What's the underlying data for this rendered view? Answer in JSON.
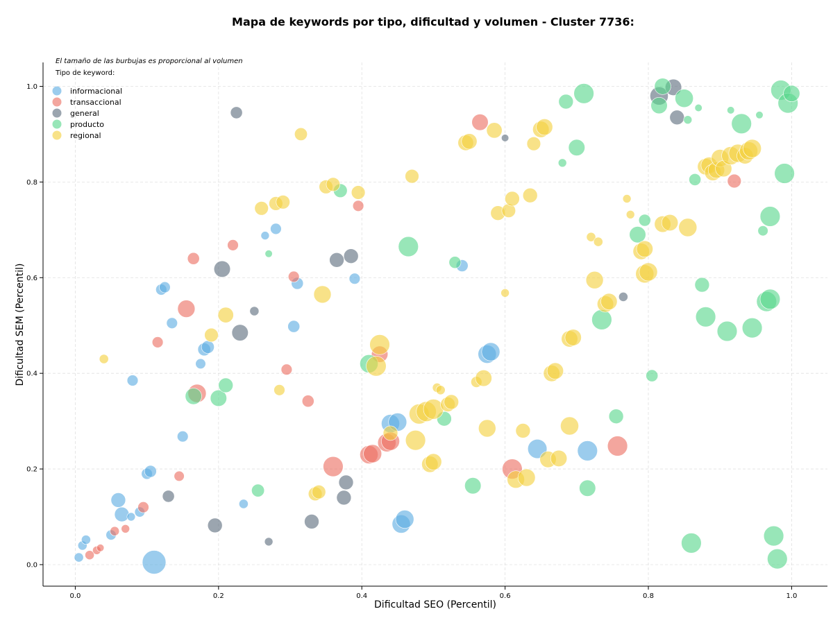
{
  "chart_data": {
    "type": "scatter",
    "title": "Mapa de keywords por tipo, dificultad y volumen - Cluster 7736:",
    "xlabel": "Dificultad SEO (Percentil)",
    "ylabel": "Dificultad SEM (Percentil)",
    "annotation": "El tamaño de las burbujas es proporcional al volumen",
    "legend_title": "Tipo de keyword:",
    "legend_position": "top-left",
    "xlim": [
      -0.045,
      1.05
    ],
    "ylim": [
      -0.045,
      1.05
    ],
    "xticks": [
      0.0,
      0.2,
      0.4,
      0.6,
      0.8,
      1.0
    ],
    "yticks": [
      0.0,
      0.2,
      0.4,
      0.6,
      0.8,
      1.0
    ],
    "tick_labels": [
      "0.0",
      "0.2",
      "0.4",
      "0.6",
      "0.8",
      "1.0"
    ],
    "grid": true,
    "series": [
      {
        "name": "informacional",
        "color": "#5DADE2",
        "points": [
          [
            0.005,
            0.015,
            0.2
          ],
          [
            0.01,
            0.04,
            0.2
          ],
          [
            0.015,
            0.052,
            0.2
          ],
          [
            0.05,
            0.062,
            0.25
          ],
          [
            0.06,
            0.135,
            0.5
          ],
          [
            0.065,
            0.105,
            0.5
          ],
          [
            0.078,
            0.1,
            0.15
          ],
          [
            0.09,
            0.11,
            0.25
          ],
          [
            0.1,
            0.19,
            0.3
          ],
          [
            0.105,
            0.195,
            0.35
          ],
          [
            0.11,
            0.005,
            1.0
          ],
          [
            0.08,
            0.385,
            0.3
          ],
          [
            0.12,
            0.575,
            0.3
          ],
          [
            0.125,
            0.58,
            0.3
          ],
          [
            0.135,
            0.505,
            0.3
          ],
          [
            0.15,
            0.268,
            0.3
          ],
          [
            0.175,
            0.42,
            0.25
          ],
          [
            0.18,
            0.45,
            0.4
          ],
          [
            0.185,
            0.455,
            0.4
          ],
          [
            0.235,
            0.127,
            0.2
          ],
          [
            0.265,
            0.688,
            0.15
          ],
          [
            0.28,
            0.702,
            0.3
          ],
          [
            0.305,
            0.498,
            0.35
          ],
          [
            0.31,
            0.588,
            0.35
          ],
          [
            0.39,
            0.598,
            0.3
          ],
          [
            0.44,
            0.295,
            0.7
          ],
          [
            0.45,
            0.298,
            0.7
          ],
          [
            0.455,
            0.085,
            0.7
          ],
          [
            0.46,
            0.095,
            0.7
          ],
          [
            0.54,
            0.625,
            0.35
          ],
          [
            0.575,
            0.44,
            0.7
          ],
          [
            0.58,
            0.445,
            0.7
          ],
          [
            0.645,
            0.242,
            0.75
          ],
          [
            0.715,
            0.238,
            0.8
          ]
        ]
      },
      {
        "name": "transaccional",
        "color": "#EC7063",
        "points": [
          [
            0.02,
            0.02,
            0.2
          ],
          [
            0.03,
            0.03,
            0.15
          ],
          [
            0.035,
            0.035,
            0.1
          ],
          [
            0.055,
            0.07,
            0.2
          ],
          [
            0.07,
            0.075,
            0.15
          ],
          [
            0.095,
            0.12,
            0.3
          ],
          [
            0.115,
            0.465,
            0.3
          ],
          [
            0.145,
            0.185,
            0.25
          ],
          [
            0.155,
            0.535,
            0.65
          ],
          [
            0.165,
            0.64,
            0.35
          ],
          [
            0.17,
            0.358,
            0.7
          ],
          [
            0.22,
            0.668,
            0.3
          ],
          [
            0.295,
            0.408,
            0.3
          ],
          [
            0.305,
            0.602,
            0.3
          ],
          [
            0.325,
            0.342,
            0.35
          ],
          [
            0.36,
            0.205,
            0.8
          ],
          [
            0.395,
            0.75,
            0.3
          ],
          [
            0.41,
            0.23,
            0.7
          ],
          [
            0.415,
            0.232,
            0.7
          ],
          [
            0.425,
            0.44,
            0.6
          ],
          [
            0.435,
            0.255,
            0.7
          ],
          [
            0.44,
            0.258,
            0.7
          ],
          [
            0.565,
            0.925,
            0.6
          ],
          [
            0.61,
            0.2,
            0.8
          ],
          [
            0.757,
            0.248,
            0.8
          ],
          [
            0.92,
            0.802,
            0.45
          ]
        ]
      },
      {
        "name": "general",
        "color": "#5D6D7E",
        "points": [
          [
            0.13,
            0.143,
            0.35
          ],
          [
            0.195,
            0.082,
            0.5
          ],
          [
            0.205,
            0.618,
            0.6
          ],
          [
            0.225,
            0.945,
            0.35
          ],
          [
            0.23,
            0.485,
            0.6
          ],
          [
            0.25,
            0.53,
            0.2
          ],
          [
            0.27,
            0.048,
            0.15
          ],
          [
            0.33,
            0.09,
            0.5
          ],
          [
            0.365,
            0.637,
            0.5
          ],
          [
            0.375,
            0.14,
            0.5
          ],
          [
            0.378,
            0.172,
            0.5
          ],
          [
            0.385,
            0.645,
            0.5
          ],
          [
            0.6,
            0.892,
            0.1
          ],
          [
            0.765,
            0.56,
            0.2
          ],
          [
            0.815,
            0.98,
            0.7
          ],
          [
            0.835,
            0.998,
            0.6
          ],
          [
            0.84,
            0.935,
            0.5
          ]
        ]
      },
      {
        "name": "producto",
        "color": "#58D68D",
        "points": [
          [
            0.165,
            0.352,
            0.6
          ],
          [
            0.2,
            0.348,
            0.6
          ],
          [
            0.21,
            0.375,
            0.5
          ],
          [
            0.255,
            0.155,
            0.4
          ],
          [
            0.27,
            0.65,
            0.1
          ],
          [
            0.37,
            0.782,
            0.45
          ],
          [
            0.41,
            0.42,
            0.7
          ],
          [
            0.465,
            0.665,
            0.8
          ],
          [
            0.515,
            0.305,
            0.5
          ],
          [
            0.53,
            0.632,
            0.35
          ],
          [
            0.555,
            0.165,
            0.6
          ],
          [
            0.68,
            0.84,
            0.15
          ],
          [
            0.685,
            0.968,
            0.5
          ],
          [
            0.7,
            0.872,
            0.6
          ],
          [
            0.71,
            0.985,
            0.8
          ],
          [
            0.715,
            0.16,
            0.6
          ],
          [
            0.735,
            0.512,
            0.8
          ],
          [
            0.755,
            0.31,
            0.5
          ],
          [
            0.785,
            0.69,
            0.6
          ],
          [
            0.795,
            0.72,
            0.35
          ],
          [
            0.805,
            0.395,
            0.35
          ],
          [
            0.815,
            0.96,
            0.6
          ],
          [
            0.82,
            1.0,
            0.6
          ],
          [
            0.85,
            0.975,
            0.7
          ],
          [
            0.855,
            0.93,
            0.15
          ],
          [
            0.86,
            0.045,
            0.8
          ],
          [
            0.865,
            0.805,
            0.35
          ],
          [
            0.87,
            0.955,
            0.1
          ],
          [
            0.875,
            0.585,
            0.5
          ],
          [
            0.88,
            0.518,
            0.8
          ],
          [
            0.91,
            0.488,
            0.8
          ],
          [
            0.915,
            0.95,
            0.1
          ],
          [
            0.93,
            0.922,
            0.8
          ],
          [
            0.945,
            0.495,
            0.8
          ],
          [
            0.955,
            0.94,
            0.1
          ],
          [
            0.96,
            0.698,
            0.25
          ],
          [
            0.965,
            0.55,
            0.8
          ],
          [
            0.97,
            0.555,
            0.8
          ],
          [
            0.97,
            0.728,
            0.8
          ],
          [
            0.975,
            0.06,
            0.8
          ],
          [
            0.98,
            0.012,
            0.8
          ],
          [
            0.985,
            0.992,
            0.8
          ],
          [
            0.99,
            0.818,
            0.8
          ],
          [
            0.995,
            0.965,
            0.8
          ],
          [
            1.0,
            0.985,
            0.6
          ]
        ]
      },
      {
        "name": "regional",
        "color": "#F4D03F",
        "points": [
          [
            0.04,
            0.43,
            0.2
          ],
          [
            0.19,
            0.48,
            0.45
          ],
          [
            0.21,
            0.522,
            0.55
          ],
          [
            0.26,
            0.745,
            0.45
          ],
          [
            0.28,
            0.755,
            0.45
          ],
          [
            0.29,
            0.758,
            0.45
          ],
          [
            0.285,
            0.365,
            0.3
          ],
          [
            0.315,
            0.9,
            0.4
          ],
          [
            0.335,
            0.148,
            0.45
          ],
          [
            0.34,
            0.152,
            0.45
          ],
          [
            0.345,
            0.565,
            0.65
          ],
          [
            0.35,
            0.79,
            0.45
          ],
          [
            0.36,
            0.795,
            0.45
          ],
          [
            0.395,
            0.778,
            0.45
          ],
          [
            0.42,
            0.415,
            0.8
          ],
          [
            0.425,
            0.46,
            0.8
          ],
          [
            0.44,
            0.275,
            0.5
          ],
          [
            0.47,
            0.812,
            0.45
          ],
          [
            0.475,
            0.26,
            0.8
          ],
          [
            0.48,
            0.315,
            0.8
          ],
          [
            0.49,
            0.32,
            0.8
          ],
          [
            0.5,
            0.325,
            0.8
          ],
          [
            0.495,
            0.21,
            0.6
          ],
          [
            0.5,
            0.215,
            0.6
          ],
          [
            0.505,
            0.37,
            0.2
          ],
          [
            0.51,
            0.365,
            0.2
          ],
          [
            0.52,
            0.335,
            0.5
          ],
          [
            0.525,
            0.34,
            0.5
          ],
          [
            0.545,
            0.882,
            0.55
          ],
          [
            0.55,
            0.885,
            0.55
          ],
          [
            0.56,
            0.382,
            0.3
          ],
          [
            0.57,
            0.39,
            0.6
          ],
          [
            0.575,
            0.285,
            0.65
          ],
          [
            0.585,
            0.908,
            0.55
          ],
          [
            0.59,
            0.735,
            0.5
          ],
          [
            0.6,
            0.568,
            0.15
          ],
          [
            0.605,
            0.74,
            0.45
          ],
          [
            0.61,
            0.765,
            0.5
          ],
          [
            0.615,
            0.178,
            0.65
          ],
          [
            0.625,
            0.28,
            0.5
          ],
          [
            0.63,
            0.182,
            0.65
          ],
          [
            0.635,
            0.772,
            0.5
          ],
          [
            0.64,
            0.88,
            0.45
          ],
          [
            0.65,
            0.91,
            0.6
          ],
          [
            0.655,
            0.915,
            0.6
          ],
          [
            0.66,
            0.22,
            0.6
          ],
          [
            0.665,
            0.4,
            0.6
          ],
          [
            0.67,
            0.405,
            0.6
          ],
          [
            0.675,
            0.222,
            0.6
          ],
          [
            0.69,
            0.29,
            0.7
          ],
          [
            0.69,
            0.472,
            0.6
          ],
          [
            0.695,
            0.475,
            0.6
          ],
          [
            0.72,
            0.685,
            0.2
          ],
          [
            0.725,
            0.595,
            0.65
          ],
          [
            0.73,
            0.675,
            0.2
          ],
          [
            0.74,
            0.545,
            0.6
          ],
          [
            0.745,
            0.55,
            0.6
          ],
          [
            0.77,
            0.765,
            0.15
          ],
          [
            0.775,
            0.732,
            0.15
          ],
          [
            0.79,
            0.655,
            0.6
          ],
          [
            0.795,
            0.66,
            0.6
          ],
          [
            0.795,
            0.608,
            0.7
          ],
          [
            0.8,
            0.612,
            0.7
          ],
          [
            0.82,
            0.712,
            0.6
          ],
          [
            0.83,
            0.715,
            0.6
          ],
          [
            0.855,
            0.705,
            0.7
          ],
          [
            0.88,
            0.832,
            0.6
          ],
          [
            0.885,
            0.835,
            0.6
          ],
          [
            0.89,
            0.82,
            0.6
          ],
          [
            0.895,
            0.825,
            0.6
          ],
          [
            0.9,
            0.85,
            0.65
          ],
          [
            0.905,
            0.828,
            0.6
          ],
          [
            0.915,
            0.855,
            0.7
          ],
          [
            0.925,
            0.86,
            0.7
          ],
          [
            0.935,
            0.855,
            0.6
          ],
          [
            0.94,
            0.865,
            0.7
          ],
          [
            0.945,
            0.87,
            0.7
          ]
        ]
      }
    ]
  }
}
